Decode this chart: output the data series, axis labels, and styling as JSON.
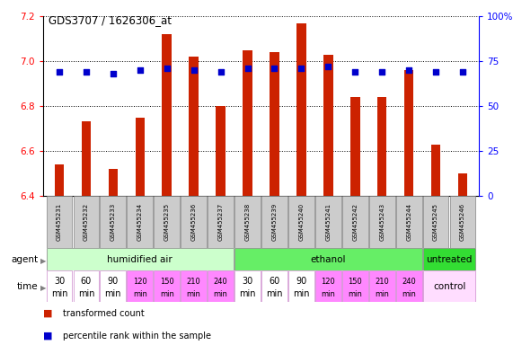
{
  "title": "GDS3707 / 1626306_at",
  "samples": [
    "GSM455231",
    "GSM455232",
    "GSM455233",
    "GSM455234",
    "GSM455235",
    "GSM455236",
    "GSM455237",
    "GSM455238",
    "GSM455239",
    "GSM455240",
    "GSM455241",
    "GSM455242",
    "GSM455243",
    "GSM455244",
    "GSM455245",
    "GSM455246"
  ],
  "transformed_count": [
    6.54,
    6.73,
    6.52,
    6.75,
    7.12,
    7.02,
    6.8,
    7.05,
    7.04,
    7.17,
    7.03,
    6.84,
    6.84,
    6.96,
    6.63,
    6.5
  ],
  "percentile_rank": [
    69,
    69,
    68,
    70,
    71,
    70,
    69,
    71,
    71,
    71,
    72,
    69,
    69,
    70,
    69,
    69
  ],
  "bar_color": "#cc2200",
  "dot_color": "#0000cc",
  "ylim_left": [
    6.4,
    7.2
  ],
  "ylim_right": [
    0,
    100
  ],
  "yticks_left": [
    6.4,
    6.6,
    6.8,
    7.0,
    7.2
  ],
  "yticks_right": [
    0,
    25,
    50,
    75,
    100
  ],
  "agent_colors": [
    "#ccffcc",
    "#66ee66",
    "#33dd33"
  ],
  "agent_labels": [
    "humidified air",
    "ethanol",
    "untreated"
  ],
  "agent_starts": [
    0,
    7,
    14
  ],
  "agent_ends": [
    6,
    13,
    15
  ],
  "time_labels_str": [
    "30\nmin",
    "60\nmin",
    "90\nmin",
    "120\nmin",
    "150\nmin",
    "210\nmin",
    "240\nmin",
    "30\nmin",
    "60\nmin",
    "90\nmin",
    "120\nmin",
    "150\nmin",
    "210\nmin",
    "240\nmin",
    "",
    ""
  ],
  "time_colors": [
    "#ffffff",
    "#ffffff",
    "#ffffff",
    "#ff88ff",
    "#ff88ff",
    "#ff88ff",
    "#ff88ff",
    "#ffffff",
    "#ffffff",
    "#ffffff",
    "#ff88ff",
    "#ff88ff",
    "#ff88ff",
    "#ff88ff",
    "#ffddff",
    "#ffddff"
  ],
  "control_label": "control",
  "legend_bar_label": "transformed count",
  "legend_dot_label": "percentile rank within the sample",
  "sample_bg_color": "#cccccc"
}
